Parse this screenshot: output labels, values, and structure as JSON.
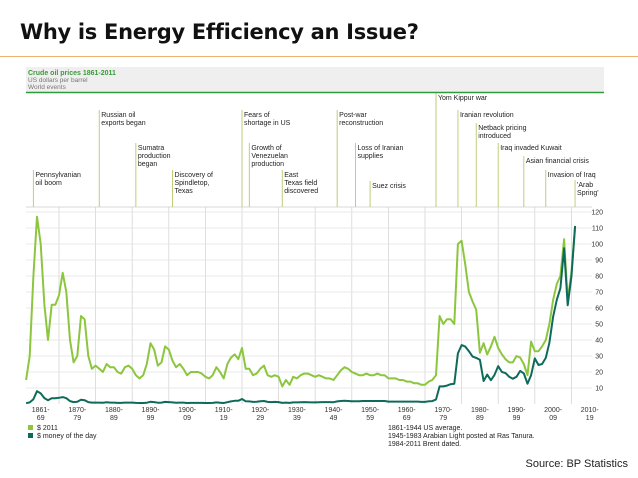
{
  "slide": {
    "title": "Why is Energy Efficiency an Issue?",
    "source": "Source: BP Statistics",
    "accent_line_color": "#f0b070"
  },
  "chart_data": {
    "type": "line",
    "title": "Crude oil prices 1861-2011",
    "subtitle": "US dollars per barrel",
    "events_heading": "World events",
    "x_start": 1861,
    "x_step": 1,
    "xlim": [
      1861,
      2019
    ],
    "ylim": [
      0,
      120
    ],
    "yticks": [
      10,
      20,
      30,
      40,
      50,
      60,
      70,
      80,
      90,
      100,
      110,
      120
    ],
    "xtick_labels": [
      [
        "1861-",
        "69"
      ],
      [
        "1870-",
        "79"
      ],
      [
        "1880-",
        "89"
      ],
      [
        "1890-",
        "99"
      ],
      [
        "1900-",
        "09"
      ],
      [
        "1910-",
        "19"
      ],
      [
        "1920-",
        "29"
      ],
      [
        "1930-",
        "39"
      ],
      [
        "1940-",
        "49"
      ],
      [
        "1950-",
        "59"
      ],
      [
        "1960-",
        "69"
      ],
      [
        "1970-",
        "79"
      ],
      [
        "1980-",
        "89"
      ],
      [
        "1990-",
        "99"
      ],
      [
        "2000-",
        "09"
      ],
      [
        "2010-",
        "19"
      ]
    ],
    "grid": true,
    "legend_placement": "bottom-left",
    "series": [
      {
        "name": "$ 2011",
        "color": "#8cc63e",
        "values": [
          15,
          30,
          80,
          117,
          100,
          62,
          40,
          62,
          62,
          68,
          82,
          70,
          40,
          26,
          30,
          55,
          53,
          30,
          22,
          24,
          22,
          20,
          25,
          23,
          23,
          20,
          19,
          23,
          24,
          22,
          18,
          16,
          18,
          25,
          38,
          34,
          24,
          26,
          36,
          34,
          27,
          23,
          25,
          22,
          18,
          20,
          20,
          20,
          19,
          17,
          16,
          18,
          23,
          20,
          16,
          25,
          29,
          31,
          28,
          35,
          22,
          22,
          18,
          19,
          22,
          24,
          18,
          17,
          18,
          17,
          11,
          15,
          12,
          17,
          16,
          18,
          19,
          19,
          18,
          17,
          18,
          17,
          16,
          16,
          15,
          18,
          21,
          23,
          22,
          20,
          19,
          18,
          18,
          19,
          18,
          18,
          19,
          18,
          18,
          16,
          16,
          16,
          15,
          15,
          14,
          14,
          13,
          13,
          12,
          12,
          14,
          15,
          18,
          55,
          50,
          53,
          53,
          50,
          100,
          102,
          87,
          70,
          64,
          59,
          32,
          38,
          31,
          36,
          42,
          35,
          31,
          28,
          26,
          26,
          30,
          29,
          25,
          18,
          39,
          33,
          33,
          36,
          40,
          50,
          65,
          75,
          80,
          103,
          65,
          82,
          111
        ]
      },
      {
        "name": "$ money of the day",
        "color": "#0e6b5a",
        "values": [
          0.5,
          1,
          3,
          8,
          6.6,
          3.7,
          2.4,
          3.6,
          3.6,
          3.9,
          4.3,
          3.6,
          1.8,
          1.2,
          1.4,
          2.6,
          2.4,
          1.2,
          0.9,
          0.9,
          0.9,
          0.8,
          1.1,
          0.9,
          0.9,
          0.7,
          0.7,
          0.9,
          0.9,
          0.9,
          0.7,
          0.6,
          0.6,
          0.8,
          1.4,
          1.2,
          0.8,
          0.9,
          1.3,
          1.2,
          1,
          0.8,
          0.9,
          0.9,
          0.6,
          0.7,
          0.7,
          0.7,
          0.7,
          0.6,
          0.6,
          0.7,
          1,
          0.8,
          0.6,
          1.1,
          1.6,
          2,
          2,
          3.1,
          1.7,
          1.6,
          1.3,
          1.4,
          1.7,
          1.9,
          1.3,
          1.2,
          1.3,
          1.2,
          0.7,
          0.9,
          0.7,
          1,
          1,
          1.1,
          1.2,
          1.1,
          1,
          1,
          1.1,
          1.2,
          1.2,
          1.2,
          1.1,
          1.6,
          1.9,
          2,
          1.9,
          1.7,
          1.7,
          1.7,
          1.9,
          1.9,
          1.9,
          1.9,
          1.9,
          1.9,
          1.9,
          1.5,
          1.5,
          1.5,
          1.5,
          1.5,
          1.5,
          1.5,
          1.5,
          1.5,
          1.3,
          1.3,
          1.7,
          1.8,
          2.8,
          11,
          11,
          11.5,
          12.4,
          12.7,
          31.6,
          36.8,
          35.9,
          33,
          29.6,
          28.8,
          27.6,
          14.4,
          18.4,
          14.9,
          18.2,
          23.7,
          20,
          19.3,
          17,
          15.8,
          17,
          20.7,
          19.1,
          12.7,
          18,
          28.5,
          24.4,
          25,
          28.8,
          38.3,
          54.5,
          65.1,
          72.4,
          97.3,
          61.7,
          79.5,
          111.3
        ]
      }
    ],
    "events": [
      {
        "year": 1863,
        "label": [
          "Pennsylvanian",
          "oil boom"
        ]
      },
      {
        "year": 1881,
        "label": [
          "Russian oil",
          "exports began"
        ]
      },
      {
        "year": 1891,
        "label": [
          "Sumatra",
          "production",
          "began"
        ]
      },
      {
        "year": 1901,
        "label": [
          "Discovery of",
          "Spindletop,",
          "Texas"
        ]
      },
      {
        "year": 1920,
        "label": [
          "Fears of",
          "shortage in US"
        ]
      },
      {
        "year": 1922,
        "label": [
          "Growth of",
          "Venezuelan",
          "production"
        ]
      },
      {
        "year": 1931,
        "label": [
          "East",
          "Texas field",
          "discovered"
        ]
      },
      {
        "year": 1946,
        "label": [
          "Post-war",
          "reconstruction"
        ]
      },
      {
        "year": 1951,
        "label": [
          "Loss of Iranian",
          "supplies"
        ]
      },
      {
        "year": 1955,
        "label": [
          "Suez crisis"
        ]
      },
      {
        "year": 1973,
        "label": [
          "Yom Kippur war"
        ]
      },
      {
        "year": 1979,
        "label": [
          "Iranian revolution"
        ]
      },
      {
        "year": 1984,
        "label": [
          "Netback pricing",
          "introduced"
        ]
      },
      {
        "year": 1990,
        "label": [
          "Iraq invaded Kuwait"
        ]
      },
      {
        "year": 1997,
        "label": [
          "Asian financial crisis"
        ]
      },
      {
        "year": 2003,
        "label": [
          "Invasion of Iraq"
        ]
      },
      {
        "year": 2011,
        "label": [
          "'Arab",
          "Spring'"
        ]
      }
    ],
    "notes": [
      "1861-1944 US average.",
      "1945-1983 Arabian Light posted at Ras Tanura.",
      "1984-2011 Brent dated."
    ]
  }
}
